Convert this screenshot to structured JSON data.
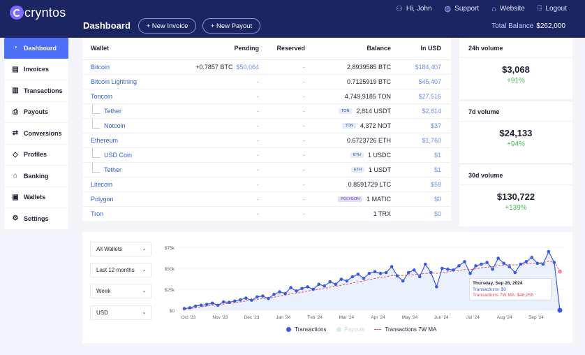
{
  "header": {
    "logo": "cryntos",
    "links": [
      {
        "icon": "user-icon",
        "label": "Hi, John"
      },
      {
        "icon": "support-icon",
        "label": "Support"
      },
      {
        "icon": "globe-icon",
        "label": "Website"
      },
      {
        "icon": "logout-icon",
        "label": "Logout"
      }
    ],
    "page_title": "Dashboard",
    "new_invoice": "+ New Invoice",
    "new_payout": "+ New Payout",
    "total_balance_label": "Total Balance",
    "total_balance_value": "$262,000"
  },
  "sidebar": {
    "items": [
      {
        "label": "Dashboard",
        "icon": "dashboard-icon",
        "active": true
      },
      {
        "label": "Invoices",
        "icon": "invoice-icon"
      },
      {
        "label": "Transactions",
        "icon": "transactions-icon"
      },
      {
        "label": "Payouts",
        "icon": "payout-icon"
      },
      {
        "label": "Conversions",
        "icon": "conversion-icon"
      },
      {
        "label": "Profiles",
        "icon": "profile-icon"
      },
      {
        "label": "Banking",
        "icon": "bank-icon"
      },
      {
        "label": "Wallets",
        "icon": "wallet-icon"
      },
      {
        "label": "Settings",
        "icon": "settings-icon"
      }
    ]
  },
  "wallets": {
    "columns": [
      "Wallet",
      "Pending",
      "Reserved",
      "Balance",
      "In USD"
    ],
    "rows": [
      {
        "name": "Bitcoin",
        "sub": false,
        "pending": "+0.7857 BTC",
        "pending_usd": "$50,064",
        "reserved": "-",
        "balance": "2.8939585 BTC",
        "tag": "",
        "usd": "$184,407"
      },
      {
        "name": "Bitcoin Lightning",
        "sub": false,
        "pending": "-",
        "pending_usd": "",
        "reserved": "-",
        "balance": "0.7125919 BTC",
        "tag": "",
        "usd": "$45,407"
      },
      {
        "name": "Toncoin",
        "sub": false,
        "pending": "-",
        "pending_usd": "",
        "reserved": "-",
        "balance": "4,749.9185 TON",
        "tag": "",
        "usd": "$27,516"
      },
      {
        "name": "Tether",
        "sub": true,
        "pending": "-",
        "pending_usd": "",
        "reserved": "-",
        "balance": "2,814 USDT",
        "tag": "TON",
        "usd": "$2,814"
      },
      {
        "name": "Notcoin",
        "sub": true,
        "pending": "-",
        "pending_usd": "",
        "reserved": "-",
        "balance": "4,372 NOT",
        "tag": "TON",
        "usd": "$37"
      },
      {
        "name": "Ethereum",
        "sub": false,
        "pending": "-",
        "pending_usd": "",
        "reserved": "-",
        "balance": "0.6723726 ETH",
        "tag": "",
        "usd": "$1,760"
      },
      {
        "name": "USD Coin",
        "sub": true,
        "pending": "-",
        "pending_usd": "",
        "reserved": "-",
        "balance": "1 USDC",
        "tag": "ETH",
        "usd": "$1"
      },
      {
        "name": "Tether",
        "sub": true,
        "pending": "-",
        "pending_usd": "",
        "reserved": "-",
        "balance": "1 USDT",
        "tag": "ETH",
        "usd": "$1"
      },
      {
        "name": "Litecoin",
        "sub": false,
        "pending": "-",
        "pending_usd": "",
        "reserved": "-",
        "balance": "0.8591729 LTC",
        "tag": "",
        "usd": "$58"
      },
      {
        "name": "Polygon",
        "sub": false,
        "pending": "-",
        "pending_usd": "",
        "reserved": "-",
        "balance": "1 MATIC",
        "tag": "POLYGON",
        "usd": "$0"
      },
      {
        "name": "Tron",
        "sub": false,
        "pending": "-",
        "pending_usd": "",
        "reserved": "-",
        "balance": "1 TRX",
        "tag": "",
        "usd": "$0"
      }
    ]
  },
  "volumes": [
    {
      "title": "24h volume",
      "value": "$3,068",
      "change": "+91%"
    },
    {
      "title": "7d volume",
      "value": "$24,133",
      "change": "+94%"
    },
    {
      "title": "30d volume",
      "value": "$130,722",
      "change": "+139%"
    }
  ],
  "filters": {
    "wallets": "All Wallets",
    "period": "Last 12 months",
    "interval": "Week",
    "currency": "USD"
  },
  "chart_data": {
    "type": "line",
    "x_ticks": [
      "Oct '23",
      "Nov '23",
      "Dec '23",
      "Jan '24",
      "Feb '24",
      "Mar '24",
      "Apr '24",
      "May '24",
      "Jun '24",
      "Jul '24",
      "Aug '24",
      "Sep '24"
    ],
    "y_ticks": [
      "$75k",
      "$50k",
      "$25k",
      "$0"
    ],
    "ylim": [
      0,
      75000
    ],
    "series": [
      {
        "name": "Transactions",
        "color": "#3b5bdb",
        "values": [
          2000,
          3000,
          5000,
          6000,
          7000,
          8500,
          6000,
          10000,
          9500,
          11000,
          12500,
          14500,
          12000,
          16000,
          17000,
          14000,
          19000,
          22000,
          20000,
          27000,
          23000,
          26000,
          28000,
          25000,
          31000,
          29000,
          34000,
          31000,
          37000,
          35000,
          40000,
          43000,
          38000,
          44000,
          46000,
          44000,
          45000,
          52000,
          41000,
          35000,
          45000,
          48000,
          40000,
          55000,
          45000,
          28000,
          50000,
          49000,
          48000,
          53000,
          58000,
          44000,
          53000,
          55000,
          57000,
          49000,
          62000,
          56000,
          52000,
          45000,
          55000,
          58000,
          63000,
          56000,
          55000,
          70000,
          57000,
          0
        ]
      },
      {
        "name": "Payouts",
        "color": "#c5e8d0",
        "values": []
      },
      {
        "name": "Transactions 7W MA",
        "color": "#e14b6a",
        "values": [
          1000,
          2000,
          3000,
          4000,
          5000,
          6000,
          7000,
          7500,
          8000,
          9000,
          10000,
          11000,
          12000,
          13000,
          14000,
          14500,
          15500,
          17000,
          18000,
          19500,
          20500,
          21500,
          23000,
          24000,
          25000,
          26000,
          27500,
          28500,
          30000,
          31000,
          32500,
          34000,
          35000,
          36500,
          38000,
          39000,
          40000,
          41500,
          41500,
          41500,
          42000,
          42500,
          43000,
          44000,
          44500,
          44000,
          45000,
          46000,
          47000,
          47500,
          48500,
          48500,
          49500,
          50500,
          51500,
          52000,
          53000,
          54000,
          54500,
          54000,
          54500,
          55500,
          56000,
          56500,
          57000,
          58500,
          58000,
          46255
        ]
      }
    ],
    "tooltip": {
      "title": "Thursday, Sep 26, 2024",
      "line1": "Transactions: $0",
      "line2": "Transactions 7W MA: $46,255"
    }
  }
}
